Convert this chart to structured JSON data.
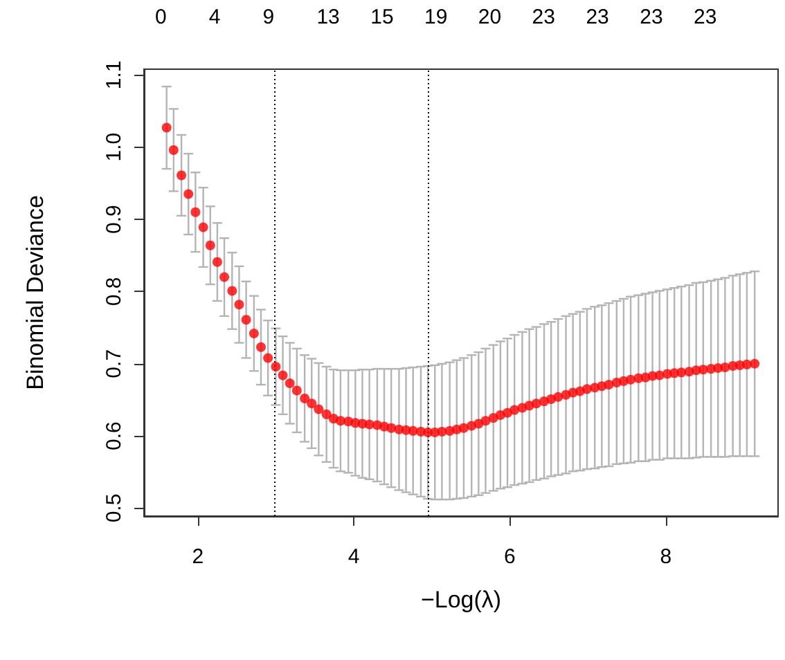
{
  "chart_data": {
    "type": "scatter",
    "xlabel": "−Log(λ)",
    "ylabel": "Binomial Deviance",
    "xlim": [
      1.31,
      9.44
    ],
    "xticks": [
      2,
      4,
      6,
      8
    ],
    "ylim": [
      0.489,
      1.108
    ],
    "yticks": [
      0.5,
      0.6,
      0.7,
      0.8,
      0.9,
      {
        "value": 1.0,
        "label": "1.0"
      },
      1.1
    ],
    "annotations": [
      "0",
      "4",
      "9",
      "13",
      "15",
      "19",
      "20",
      "23",
      "23",
      "23",
      "23"
    ],
    "marker": "circle",
    "grid": false,
    "legend": false,
    "series": [
      {
        "color": "#ff0000",
        "x": [
          1.6,
          1.69,
          1.79,
          1.88,
          1.97,
          2.07,
          2.16,
          2.25,
          2.34,
          2.44,
          2.53,
          2.62,
          2.72,
          2.81,
          2.9,
          3.0,
          3.09,
          3.18,
          3.27,
          3.37,
          3.46,
          3.55,
          3.65,
          3.74,
          3.83,
          3.93,
          4.02,
          4.11,
          4.2,
          4.3,
          4.39,
          4.48,
          4.58,
          4.67,
          4.76,
          4.86,
          4.95,
          5.04,
          5.13,
          5.23,
          5.32,
          5.41,
          5.51,
          5.6,
          5.69,
          5.79,
          5.88,
          5.97,
          6.06,
          6.16,
          6.25,
          6.34,
          6.44,
          6.53,
          6.62,
          6.72,
          6.81,
          6.9,
          6.99,
          7.09,
          7.18,
          7.27,
          7.37,
          7.46,
          7.55,
          7.65,
          7.74,
          7.83,
          7.92,
          8.02,
          8.11,
          8.2,
          8.3,
          8.39,
          8.48,
          8.58,
          8.67,
          8.76,
          8.86,
          8.95,
          9.04,
          9.14
        ],
        "values": [
          1.027,
          0.996,
          0.961,
          0.935,
          0.91,
          0.889,
          0.864,
          0.841,
          0.82,
          0.801,
          0.782,
          0.761,
          0.742,
          0.723,
          0.708,
          0.696,
          0.684,
          0.673,
          0.663,
          0.652,
          0.645,
          0.637,
          0.63,
          0.624,
          0.621,
          0.62,
          0.618,
          0.617,
          0.616,
          0.615,
          0.613,
          0.611,
          0.609,
          0.608,
          0.607,
          0.606,
          0.605,
          0.605,
          0.606,
          0.607,
          0.609,
          0.611,
          0.614,
          0.617,
          0.621,
          0.625,
          0.629,
          0.632,
          0.636,
          0.639,
          0.642,
          0.645,
          0.648,
          0.651,
          0.654,
          0.657,
          0.66,
          0.662,
          0.665,
          0.667,
          0.669,
          0.671,
          0.674,
          0.676,
          0.678,
          0.68,
          0.681,
          0.683,
          0.684,
          0.686,
          0.687,
          0.688,
          0.689,
          0.691,
          0.692,
          0.693,
          0.694,
          0.695,
          0.697,
          0.698,
          0.699,
          0.7
        ],
        "errors": [
          0.057,
          0.057,
          0.056,
          0.056,
          0.055,
          0.055,
          0.054,
          0.054,
          0.054,
          0.053,
          0.053,
          0.053,
          0.052,
          0.052,
          0.052,
          0.053,
          0.054,
          0.056,
          0.058,
          0.06,
          0.062,
          0.064,
          0.066,
          0.068,
          0.07,
          0.071,
          0.073,
          0.075,
          0.076,
          0.078,
          0.08,
          0.082,
          0.084,
          0.086,
          0.088,
          0.09,
          0.092,
          0.093,
          0.094,
          0.095,
          0.096,
          0.097,
          0.098,
          0.099,
          0.1,
          0.101,
          0.102,
          0.103,
          0.104,
          0.105,
          0.106,
          0.106,
          0.107,
          0.107,
          0.108,
          0.109,
          0.109,
          0.11,
          0.111,
          0.112,
          0.112,
          0.113,
          0.113,
          0.114,
          0.115,
          0.115,
          0.116,
          0.116,
          0.117,
          0.117,
          0.118,
          0.119,
          0.12,
          0.121,
          0.121,
          0.122,
          0.123,
          0.124,
          0.125,
          0.126,
          0.127,
          0.128
        ]
      }
    ],
    "ref_lines": [
      {
        "axis": "x",
        "value": 2.99,
        "color": "#000000",
        "line_style": "dotted"
      },
      {
        "axis": "x",
        "value": 4.95,
        "color": "#000000",
        "line_style": "dotted"
      }
    ]
  }
}
